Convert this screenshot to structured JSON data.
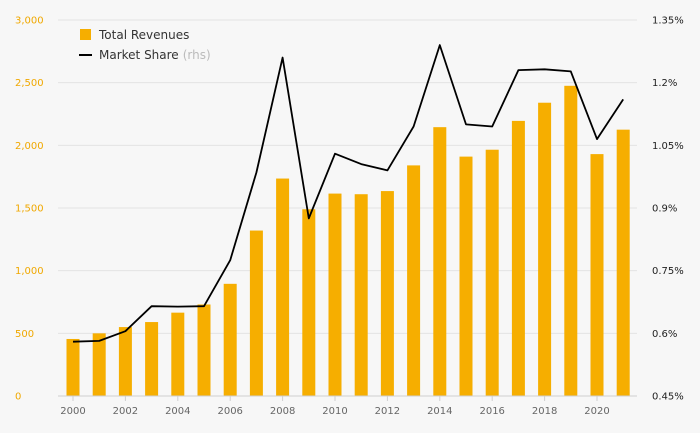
{
  "chart_data": {
    "type": "bar",
    "x": [
      2000,
      2001,
      2002,
      2003,
      2004,
      2005,
      2006,
      2007,
      2008,
      2009,
      2010,
      2011,
      2012,
      2013,
      2014,
      2015,
      2016,
      2017,
      2018,
      2019,
      2020,
      2021
    ],
    "x_tick_labels": [
      "2000",
      "2002",
      "2004",
      "2006",
      "2008",
      "2010",
      "2012",
      "2014",
      "2016",
      "2018",
      "2020"
    ],
    "series": [
      {
        "name": "Total Revenues",
        "type": "bar",
        "axis": "left",
        "color": "#f6ae00",
        "values": [
          455,
          500,
          550,
          590,
          665,
          730,
          895,
          1320,
          1735,
          1490,
          1615,
          1610,
          1635,
          1840,
          2145,
          1910,
          1965,
          2195,
          2340,
          2475,
          1930,
          2125
        ]
      },
      {
        "name": "Market Share",
        "name_suffix": "(rhs)",
        "type": "line",
        "axis": "right",
        "color": "#000000",
        "values": [
          0.58,
          0.582,
          0.605,
          0.665,
          0.664,
          0.665,
          0.775,
          0.985,
          1.26,
          0.875,
          1.03,
          1.005,
          0.99,
          1.095,
          1.29,
          1.1,
          1.095,
          1.23,
          1.232,
          1.227,
          1.065,
          1.16
        ]
      }
    ],
    "y_left": {
      "range": [
        0,
        3000
      ],
      "ticks": [
        0,
        500,
        1000,
        1500,
        2000,
        2500,
        3000
      ],
      "tick_labels": [
        "0",
        "500",
        "1,000",
        "1,500",
        "2,000",
        "2,500",
        "3,000"
      ],
      "color": "#f0a800"
    },
    "y_right": {
      "range": [
        0.45,
        1.35
      ],
      "ticks": [
        0.45,
        0.6,
        0.75,
        0.9,
        1.05,
        1.2,
        1.35
      ],
      "tick_labels": [
        "0.45%",
        "0.6%",
        "0.75%",
        "0.9%",
        "1.05%",
        "1.2%",
        "1.35%"
      ]
    },
    "grid": "horizontal",
    "legend_position": "top-left"
  }
}
